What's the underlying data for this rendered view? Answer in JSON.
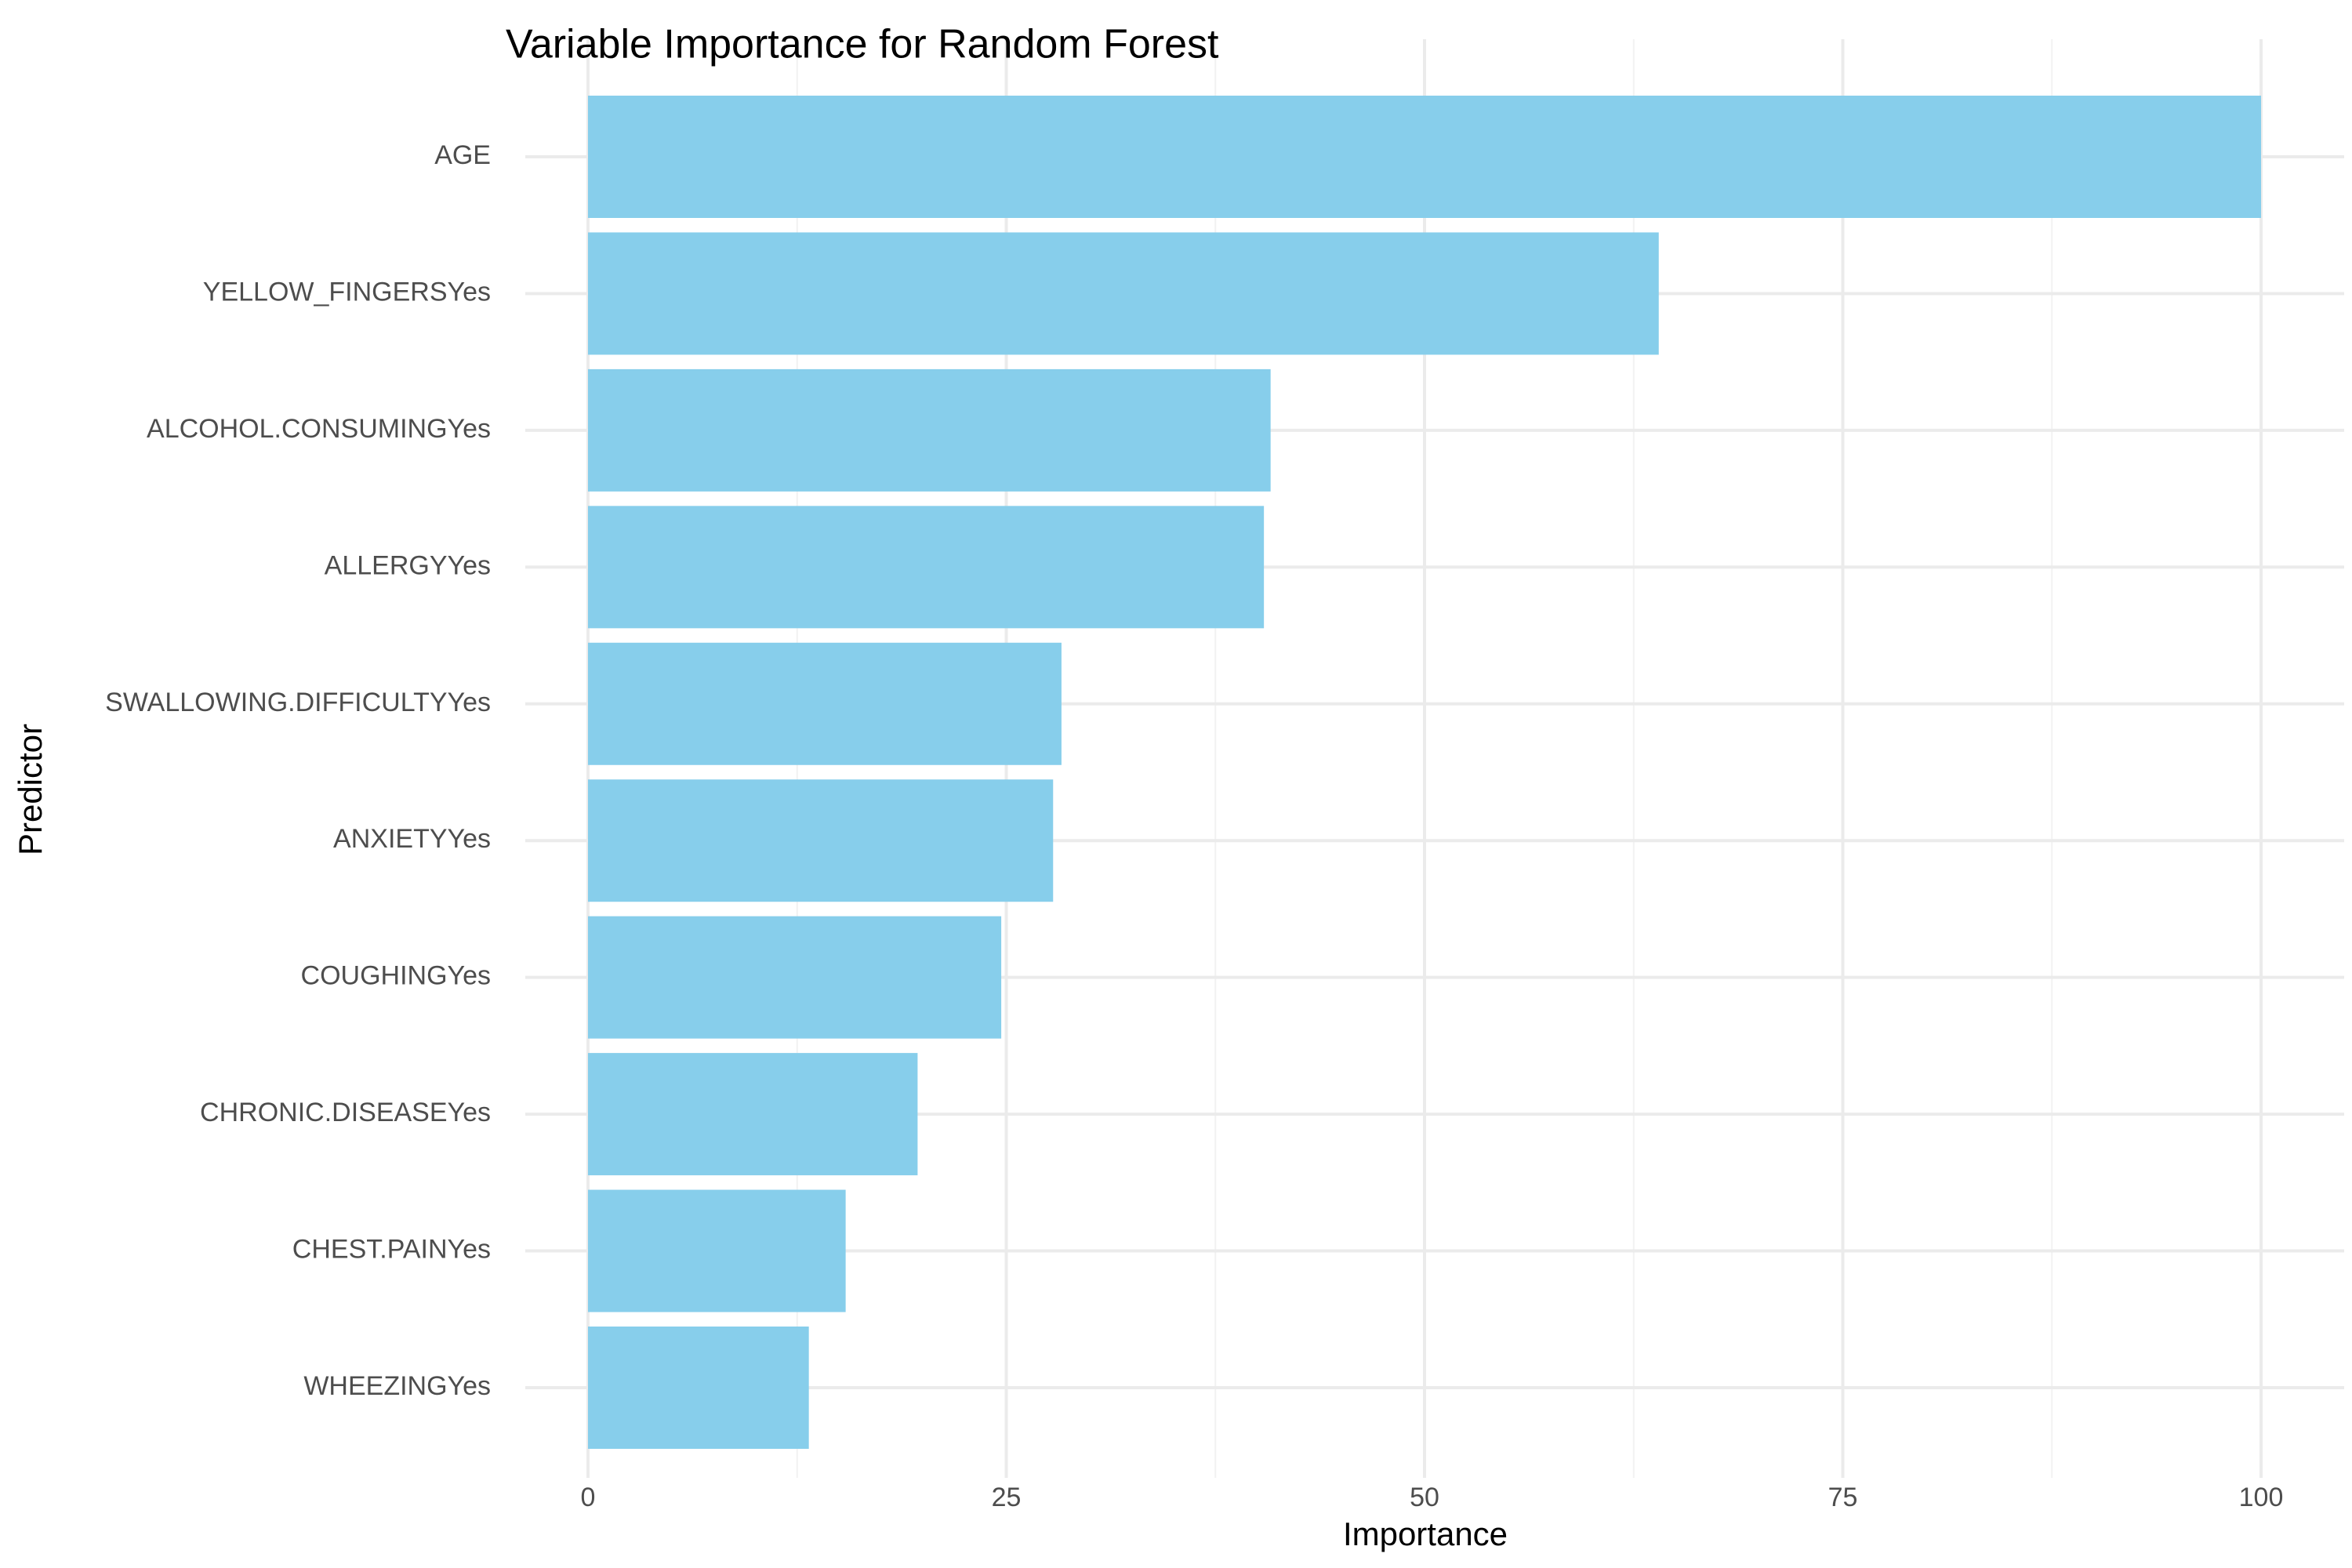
{
  "chart_data": {
    "type": "bar",
    "orientation": "horizontal",
    "title": "Variable Importance for Random Forest",
    "xlabel": "Importance",
    "ylabel": "Predictor",
    "categories": [
      "AGE",
      "YELLOW_FINGERSYes",
      "ALCOHOL.CONSUMINGYes",
      "ALLERGYYes",
      "SWALLOWING.DIFFICULTYYes",
      "ANXIETYYes",
      "COUGHINGYes",
      "CHRONIC.DISEASEYes",
      "CHEST.PAINYes",
      "WHEEZINGYes"
    ],
    "values": [
      100,
      64,
      40.8,
      40.4,
      28.3,
      27.8,
      24.7,
      19.7,
      15.4,
      13.2
    ],
    "xlim": [
      0,
      100
    ],
    "xticks": [
      "0",
      "25",
      "50",
      "75",
      "100"
    ],
    "grid": true,
    "legend": "none",
    "colors": {
      "bar": "#87ceeb",
      "grid": "#ebebeb",
      "tick_text": "#4d4d4d",
      "title_text": "#000000"
    }
  }
}
